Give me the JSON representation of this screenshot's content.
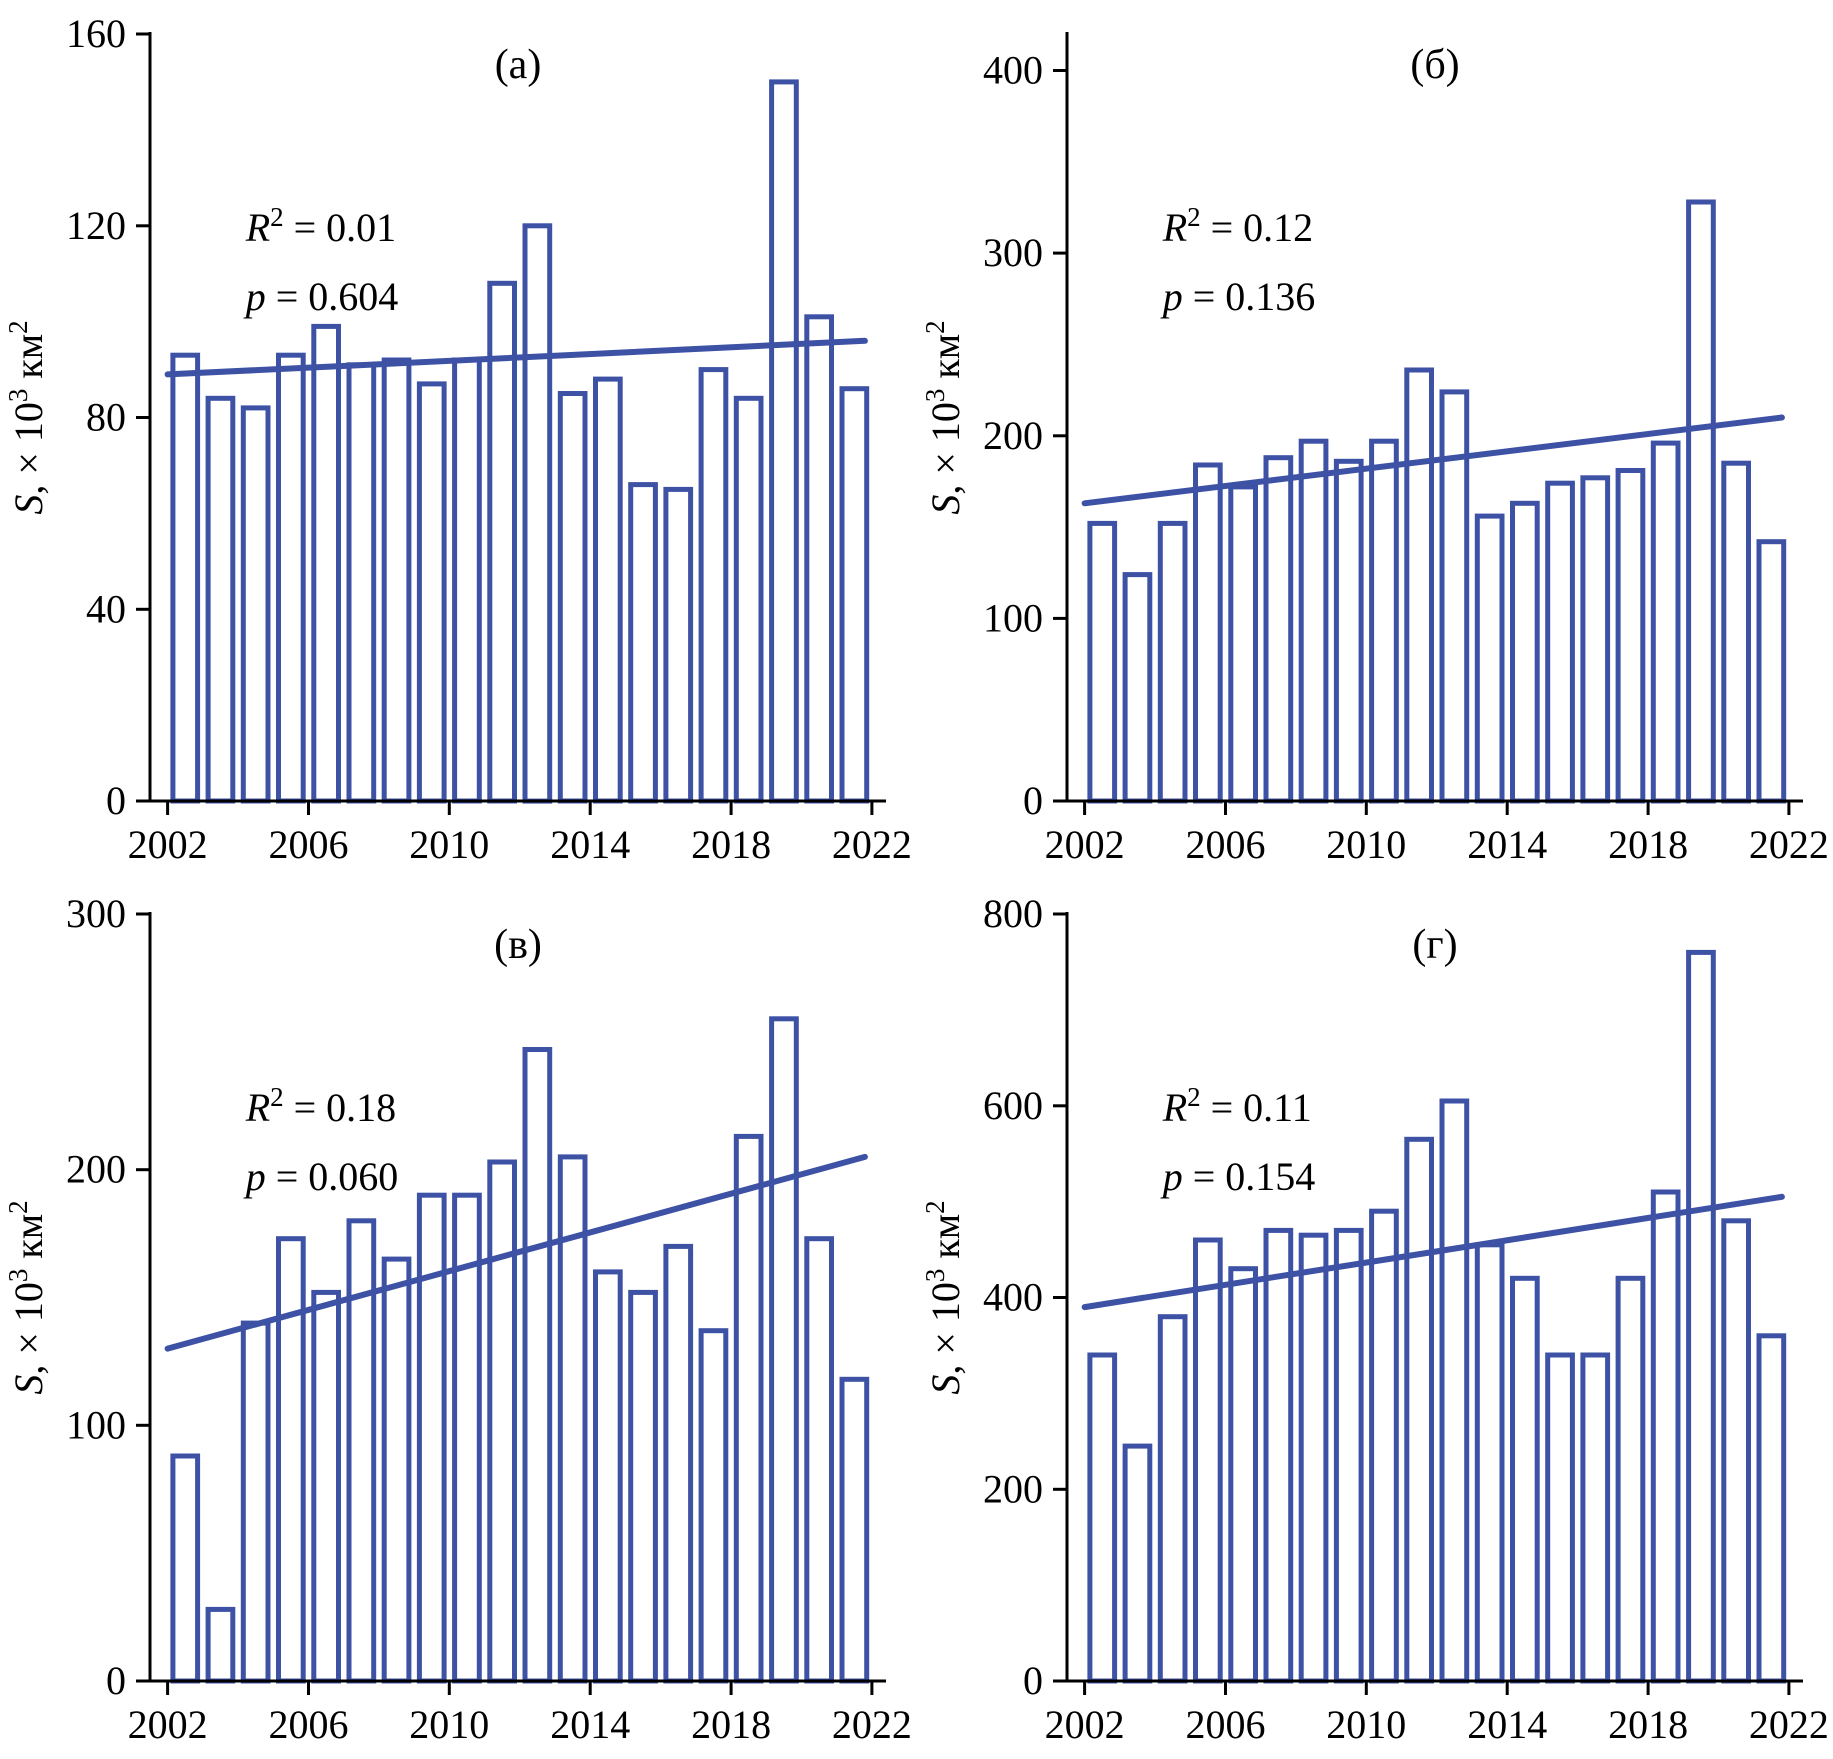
{
  "figure": {
    "background": "#ffffff",
    "description": "Four-panel bar chart figure (а, б, в, г) of area S over years 2002-2021 with linear trend lines"
  },
  "style": {
    "bar_stroke": "#3d51a5",
    "bar_fill": "#ffffff",
    "trend_color": "#3d51a5",
    "axis_color": "#000000",
    "text_color": "#000000"
  },
  "labels": {
    "r_var": "R",
    "r_exp": "2",
    "p_var": "p",
    "equals": " = ",
    "ylabel_s": "S",
    "ylabel_mid": ", × 10",
    "ylabel_exp": "3",
    "ylabel_unit": " км",
    "ylabel_unit_exp": "2"
  },
  "chart_data": [
    {
      "id": "a",
      "type": "bar",
      "panel_label": "(а)",
      "r_squared": "0.01",
      "p_value": "0.604",
      "ylabel": "S, × 10³ км²",
      "xlabel": "",
      "years": [
        2002,
        2003,
        2004,
        2005,
        2006,
        2007,
        2008,
        2009,
        2010,
        2011,
        2012,
        2013,
        2014,
        2015,
        2016,
        2017,
        2018,
        2019,
        2020,
        2021
      ],
      "values": [
        93,
        84,
        82,
        93,
        99,
        91,
        92,
        87,
        92,
        108,
        120,
        85,
        88,
        66,
        65,
        90,
        84,
        150,
        101,
        86
      ],
      "x_ticks": [
        2002,
        2006,
        2010,
        2014,
        2018,
        2022
      ],
      "y_ticks": [
        0,
        40,
        80,
        120,
        160
      ],
      "y_axis_max": 160,
      "ylim": [
        0,
        160
      ],
      "xlim": [
        2001.5,
        2022.4
      ],
      "trend": {
        "type": "linear",
        "x": [
          2002,
          2021.8
        ],
        "y": [
          89,
          96
        ]
      },
      "legend": "none",
      "grid": false
    },
    {
      "id": "b",
      "type": "bar",
      "panel_label": "(б)",
      "r_squared": "0.12",
      "p_value": "0.136",
      "ylabel": "S, × 10³ км²",
      "xlabel": "",
      "years": [
        2002,
        2003,
        2004,
        2005,
        2006,
        2007,
        2008,
        2009,
        2010,
        2011,
        2012,
        2013,
        2014,
        2015,
        2016,
        2017,
        2018,
        2019,
        2020,
        2021
      ],
      "values": [
        152,
        124,
        152,
        184,
        172,
        188,
        197,
        186,
        197,
        236,
        224,
        156,
        163,
        174,
        177,
        181,
        196,
        328,
        185,
        142
      ],
      "x_ticks": [
        2002,
        2006,
        2010,
        2014,
        2018,
        2022
      ],
      "y_ticks": [
        0,
        100,
        200,
        300,
        400
      ],
      "y_axis_max": 420,
      "ylim": [
        0,
        420
      ],
      "xlim": [
        2001.5,
        2022.4
      ],
      "trend": {
        "type": "linear",
        "x": [
          2002,
          2021.8
        ],
        "y": [
          163,
          210
        ]
      },
      "legend": "none",
      "grid": false
    },
    {
      "id": "v",
      "type": "bar",
      "panel_label": "(в)",
      "r_squared": "0.18",
      "p_value": "0.060",
      "ylabel": "S, × 10³ км²",
      "xlabel": "",
      "years": [
        2002,
        2003,
        2004,
        2005,
        2006,
        2007,
        2008,
        2009,
        2010,
        2011,
        2012,
        2013,
        2014,
        2015,
        2016,
        2017,
        2018,
        2019,
        2020,
        2021
      ],
      "values": [
        88,
        28,
        140,
        173,
        152,
        180,
        165,
        190,
        190,
        203,
        247,
        205,
        160,
        152,
        170,
        137,
        213,
        259,
        173,
        118
      ],
      "x_ticks": [
        2002,
        2006,
        2010,
        2014,
        2018,
        2022
      ],
      "y_ticks": [
        0,
        100,
        200,
        300
      ],
      "y_axis_max": 300,
      "ylim": [
        0,
        300
      ],
      "xlim": [
        2001.5,
        2022.4
      ],
      "trend": {
        "type": "linear",
        "x": [
          2002,
          2021.8
        ],
        "y": [
          130,
          205
        ]
      },
      "legend": "none",
      "grid": false
    },
    {
      "id": "g",
      "type": "bar",
      "panel_label": "(г)",
      "r_squared": "0.11",
      "p_value": "0.154",
      "ylabel": "S, × 10³ км²",
      "xlabel": "",
      "years": [
        2002,
        2003,
        2004,
        2005,
        2006,
        2007,
        2008,
        2009,
        2010,
        2011,
        2012,
        2013,
        2014,
        2015,
        2016,
        2017,
        2018,
        2019,
        2020,
        2021
      ],
      "values": [
        340,
        245,
        380,
        460,
        430,
        470,
        465,
        470,
        490,
        565,
        605,
        455,
        420,
        340,
        340,
        420,
        510,
        760,
        480,
        360
      ],
      "x_ticks": [
        2002,
        2006,
        2010,
        2014,
        2018,
        2022
      ],
      "y_ticks": [
        0,
        200,
        400,
        600,
        800
      ],
      "y_axis_max": 800,
      "ylim": [
        0,
        800
      ],
      "xlim": [
        2001.5,
        2022.4
      ],
      "trend": {
        "type": "linear",
        "x": [
          2002,
          2021.8
        ],
        "y": [
          390,
          505
        ]
      },
      "legend": "none",
      "grid": false
    }
  ]
}
